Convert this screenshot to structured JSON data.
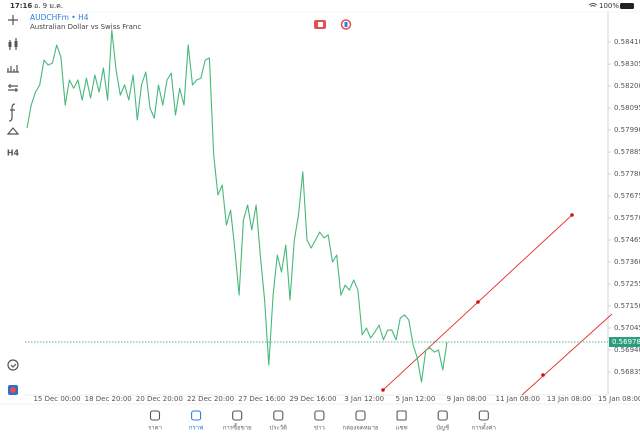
{
  "status_bar": {
    "time": "17:16",
    "date": "อ. 9 ม.ค.",
    "battery": "100%"
  },
  "header": {
    "symbol": "AUDCHFm • H4",
    "description": "Australian Dollar vs Swiss Franc"
  },
  "toolbar": {
    "timeframe": "H4"
  },
  "chart_data": {
    "type": "line",
    "color": "#46b97a",
    "values": [
      0.57999,
      0.58109,
      0.58171,
      0.58205,
      0.58324,
      0.583,
      0.5831,
      0.58396,
      0.58338,
      0.58109,
      0.58229,
      0.5819,
      0.58229,
      0.58133,
      0.58238,
      0.58143,
      0.58253,
      0.58171,
      0.58286,
      0.58133,
      0.58467,
      0.58276,
      0.58157,
      0.58205,
      0.58133,
      0.58253,
      0.58038,
      0.58205,
      0.58267,
      0.58095,
      0.58047,
      0.58205,
      0.58109,
      0.58229,
      0.58262,
      0.58062,
      0.5819,
      0.58109,
      0.58396,
      0.58205,
      0.58229,
      0.58238,
      0.58324,
      0.58334,
      0.57871,
      0.5768,
      0.57727,
      0.57536,
      0.57608,
      0.57417,
      0.57202,
      0.5756,
      0.57632,
      0.57513,
      0.57632,
      0.57393,
      0.57179,
      0.56868,
      0.57202,
      0.57393,
      0.57312,
      0.57441,
      0.57179,
      0.57465,
      0.57584,
      0.5779,
      0.57465,
      0.57427,
      0.57465,
      0.57503,
      0.57475,
      0.57489,
      0.5736,
      0.57393,
      0.57202,
      0.5725,
      0.57226,
      0.57274,
      0.57226,
      0.57012,
      0.57045,
      0.56997,
      0.57026,
      0.57059,
      0.56988,
      0.57035,
      0.57035,
      0.56988,
      0.57093,
      0.57107,
      0.57083,
      0.56964,
      0.56902,
      0.56787,
      0.5694,
      0.5695,
      0.5693,
      0.5694,
      0.56845,
      0.56978
    ],
    "current_price": 0.56978,
    "ylim": [
      0.56749,
      0.58544
    ],
    "yticks": [
      {
        "value": 0.5841,
        "label": "0.58410"
      },
      0.58305,
      {
        "value": 0.582,
        "label": "0.58200"
      },
      0.58095,
      {
        "value": 0.5799,
        "label": "0.57990"
      },
      0.57885,
      {
        "value": 0.5778,
        "label": "0.57780"
      },
      0.57675,
      {
        "value": 0.5757,
        "label": "0.57570"
      },
      0.57465,
      {
        "value": 0.5736,
        "label": "0.57360"
      },
      0.57255,
      {
        "value": 0.5715,
        "label": "0.57150"
      },
      0.57045,
      {
        "value": 0.5694,
        "label": "0.56940"
      },
      0.56835
    ],
    "x_labels": [
      "15 Dec 00:00",
      "18 Dec 20:00",
      "20 Dec 20:00",
      "22 Dec 20:00",
      "27 Dec 16:00",
      "29 Dec 16:00",
      "3 Jan 12:00",
      "5 Jan 12:00",
      "9 Jan 08:00",
      "11 Jan 08:00",
      "13 Jan 08:00",
      "15 Jan 08:00"
    ]
  },
  "tab_bar": {
    "tabs": [
      "ราคา",
      "กราฟ",
      "การซื้อขาย",
      "ประวัติ",
      "ข่าว",
      "กล่องจดหมาย",
      "แชท",
      "บัญชี",
      "การตั้งค่า"
    ],
    "active": 1
  }
}
